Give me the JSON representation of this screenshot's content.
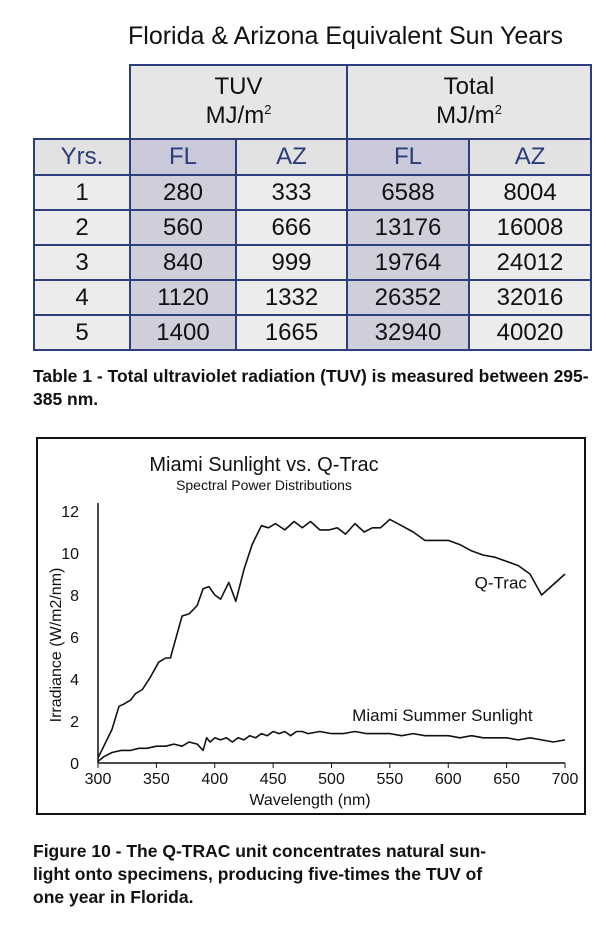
{
  "table": {
    "title": "Florida & Arizona Equivalent Sun Years",
    "groups": [
      {
        "line1": "TUV",
        "line2": "MJ/m",
        "sup": "2"
      },
      {
        "line1": "Total",
        "line2": "MJ/m",
        "sup": "2"
      }
    ],
    "headers": [
      "Yrs.",
      "FL",
      "AZ",
      "FL",
      "AZ"
    ],
    "rows": [
      [
        "1",
        "280",
        "333",
        "6588",
        "8004"
      ],
      [
        "2",
        "560",
        "666",
        "13176",
        "16008"
      ],
      [
        "3",
        "840",
        "999",
        "19764",
        "24012"
      ],
      [
        "4",
        "1120",
        "1332",
        "26352",
        "32016"
      ],
      [
        "5",
        "1400",
        "1665",
        "32940",
        "40020"
      ]
    ],
    "caption": "Table 1 - Total ultraviolet radiation (TUV) is measured between 295-385 nm."
  },
  "chart_data": {
    "type": "line",
    "title": "Miami Sunlight vs. Q-Trac",
    "subtitle": "Spectral Power Distributions",
    "xlabel": "Wavelength (nm)",
    "ylabel": "Irradiance (W/m2/nm)",
    "xlim": [
      300,
      700
    ],
    "ylim": [
      0,
      12
    ],
    "xticks": [
      300,
      350,
      400,
      450,
      500,
      550,
      600,
      650,
      700
    ],
    "yticks": [
      0,
      2,
      4,
      6,
      8,
      10,
      12
    ],
    "series": [
      {
        "name": "Q-Trac",
        "color": "#111111",
        "x": [
          295,
          305,
          312,
          318,
          322,
          328,
          332,
          338,
          345,
          352,
          358,
          362,
          368,
          372,
          378,
          385,
          390,
          395,
          400,
          405,
          412,
          418,
          425,
          432,
          440,
          446,
          452,
          460,
          468,
          475,
          482,
          490,
          498,
          505,
          512,
          520,
          528,
          535,
          542,
          550,
          560,
          570,
          580,
          590,
          600,
          610,
          620,
          630,
          640,
          650,
          660,
          670,
          680,
          690,
          700
        ],
        "y": [
          -0.3,
          0.8,
          1.6,
          2.7,
          2.8,
          3.0,
          3.3,
          3.5,
          4.1,
          4.8,
          5.0,
          5.0,
          6.2,
          7.0,
          7.1,
          7.5,
          8.3,
          8.4,
          8.0,
          7.8,
          8.6,
          7.7,
          9.2,
          10.4,
          11.3,
          11.2,
          11.4,
          11.1,
          11.5,
          11.2,
          11.5,
          11.1,
          11.1,
          11.2,
          10.9,
          11.4,
          11.0,
          11.2,
          11.2,
          11.6,
          11.3,
          11.0,
          10.6,
          10.6,
          10.6,
          10.4,
          10.1,
          9.9,
          9.8,
          9.6,
          9.4,
          9.0,
          8.0,
          8.5,
          9.0
        ]
      },
      {
        "name": "Miami Summer Sunlight",
        "color": "#111111",
        "x": [
          296,
          305,
          312,
          320,
          328,
          335,
          342,
          350,
          358,
          365,
          372,
          378,
          385,
          390,
          393,
          396,
          400,
          405,
          410,
          415,
          420,
          425,
          430,
          435,
          440,
          445,
          450,
          455,
          460,
          465,
          470,
          475,
          480,
          490,
          500,
          510,
          520,
          530,
          540,
          550,
          560,
          570,
          580,
          590,
          600,
          610,
          620,
          630,
          640,
          650,
          660,
          670,
          680,
          690,
          700
        ],
        "y": [
          -0.1,
          0.3,
          0.5,
          0.6,
          0.6,
          0.7,
          0.7,
          0.8,
          0.8,
          0.9,
          0.8,
          1.0,
          0.9,
          0.6,
          1.2,
          1.0,
          1.2,
          1.1,
          1.2,
          1.0,
          1.2,
          1.1,
          1.3,
          1.2,
          1.4,
          1.3,
          1.5,
          1.4,
          1.5,
          1.3,
          1.5,
          1.5,
          1.4,
          1.5,
          1.4,
          1.4,
          1.5,
          1.4,
          1.4,
          1.4,
          1.3,
          1.4,
          1.3,
          1.3,
          1.3,
          1.2,
          1.3,
          1.2,
          1.2,
          1.2,
          1.1,
          1.2,
          1.1,
          1.0,
          1.1
        ]
      }
    ],
    "annotations": [
      {
        "text": "Q-Trac",
        "x": 645,
        "y": 8.3
      },
      {
        "text": "Miami Summer Sunlight",
        "x": 595,
        "y": 2.0
      }
    ],
    "caption": "Figure 10 - The Q-TRAC unit concentrates natural sun-light onto specimens, producing five-times the TUV of one year in Florida.",
    "caption_lines": [
      "Figure 10 - The Q-TRAC unit concentrates natural sun-",
      "light onto specimens, producing five-times the TUV of",
      "one year in Florida."
    ]
  }
}
